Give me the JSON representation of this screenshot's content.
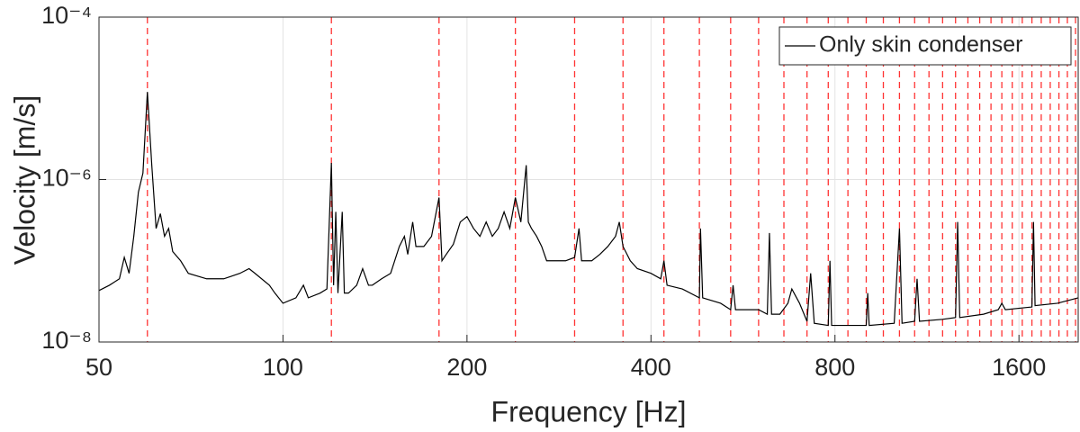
{
  "chart_data": {
    "type": "line",
    "x_label": "Frequency [Hz]",
    "y_label": "Velocity [m/s]",
    "xscale": "log",
    "yscale": "log",
    "xlim": [
      50,
      2000
    ],
    "ylim": [
      1e-08,
      0.0001
    ],
    "xticks": [
      50,
      100,
      200,
      400,
      800,
      1600
    ],
    "yticks": [
      {
        "value": 1e-08,
        "label": "10⁻⁸"
      },
      {
        "value": 1e-06,
        "label": "10⁻⁶"
      },
      {
        "value": 0.0001,
        "label": "10⁻⁴"
      }
    ],
    "grid": true,
    "legend": "upper right",
    "reference_lines": {
      "color": "#ff3333",
      "values": [
        60,
        120,
        180,
        240,
        300,
        360,
        420,
        480,
        540,
        600,
        660,
        720,
        780,
        840,
        900,
        960,
        1020,
        1080,
        1140,
        1200,
        1260,
        1320,
        1380,
        1440,
        1500,
        1560,
        1620,
        1680,
        1740,
        1800,
        1860,
        1920,
        1980
      ]
    },
    "x": [
      50,
      52,
      54,
      55,
      56,
      57,
      58,
      59,
      60,
      61,
      62,
      63,
      64,
      65,
      66,
      68,
      70,
      75,
      80,
      85,
      88,
      90,
      95,
      97,
      100,
      105,
      108,
      110,
      115,
      118,
      120,
      121,
      122,
      123,
      125,
      126,
      128,
      132,
      135,
      138,
      140,
      145,
      150,
      155,
      158,
      160,
      163,
      165,
      170,
      175,
      180,
      182,
      185,
      190,
      195,
      200,
      205,
      210,
      215,
      220,
      225,
      230,
      235,
      240,
      245,
      250,
      252,
      255,
      260,
      265,
      270,
      280,
      290,
      300,
      305,
      308,
      320,
      330,
      340,
      350,
      355,
      360,
      370,
      380,
      400,
      415,
      420,
      425,
      450,
      480,
      482,
      486,
      520,
      540,
      545,
      550,
      600,
      620,
      625,
      630,
      650,
      670,
      680,
      700,
      720,
      730,
      740,
      780,
      785,
      790,
      840,
      900,
      905,
      910,
      1000,
      1020,
      1030,
      1080,
      1090,
      1100,
      1200,
      1260,
      1270,
      1280,
      1400,
      1480,
      1500,
      1520,
      1680,
      1690,
      1700,
      1850,
      2000
    ],
    "series": [
      {
        "name": "Only skin condenser",
        "color": "#000000",
        "values": [
          4.3e-08,
          5e-08,
          6e-08,
          1.1e-07,
          7e-08,
          2e-07,
          7e-07,
          1.2e-06,
          1.2e-05,
          1.5e-06,
          2.5e-07,
          3.8e-07,
          2e-07,
          2.5e-07,
          1.3e-07,
          1e-07,
          7e-08,
          6e-08,
          6e-08,
          7e-08,
          8e-08,
          7e-08,
          5e-08,
          4e-08,
          3e-08,
          3.5e-08,
          5e-08,
          3.5e-08,
          4e-08,
          4.5e-08,
          1.6e-06,
          5e-08,
          4e-07,
          4e-08,
          4e-07,
          4e-08,
          4e-08,
          5e-08,
          8e-08,
          5e-08,
          5e-08,
          6e-08,
          7e-08,
          1.5e-07,
          2e-07,
          1.2e-07,
          3e-07,
          1.5e-07,
          1.5e-07,
          2e-07,
          6e-07,
          1e-07,
          1.2e-07,
          1.6e-07,
          3e-07,
          3.5e-07,
          2.5e-07,
          2e-07,
          3e-07,
          2e-07,
          2.5e-07,
          4e-07,
          2.5e-07,
          6e-07,
          3e-07,
          1.5e-06,
          3e-07,
          2.5e-07,
          2e-07,
          1.5e-07,
          1e-07,
          1e-07,
          1e-07,
          1.1e-07,
          2.5e-07,
          1e-07,
          1e-07,
          1.2e-07,
          1.5e-07,
          2e-07,
          3e-07,
          1.5e-07,
          1e-07,
          8e-08,
          7e-08,
          6e-08,
          1e-07,
          5e-08,
          4.5e-08,
          3.5e-08,
          2.5e-07,
          3.5e-08,
          3e-08,
          2.5e-08,
          5e-08,
          2.5e-08,
          2.5e-08,
          2.2e-08,
          2.2e-07,
          2.2e-08,
          2.2e-08,
          3e-08,
          4.5e-08,
          3e-08,
          1.8e-08,
          7e-08,
          1.7e-08,
          1.6e-08,
          1e-07,
          1.6e-08,
          1.6e-08,
          1.6e-08,
          4e-08,
          1.6e-08,
          1.7e-08,
          2.5e-07,
          1.7e-08,
          1.8e-08,
          6e-08,
          1.8e-08,
          1.9e-08,
          2e-08,
          3e-07,
          2e-08,
          2.2e-08,
          2.5e-08,
          3e-08,
          2.5e-08,
          2.7e-08,
          3e-07,
          2.8e-08,
          3e-08,
          3.5e-08
        ]
      }
    ]
  }
}
